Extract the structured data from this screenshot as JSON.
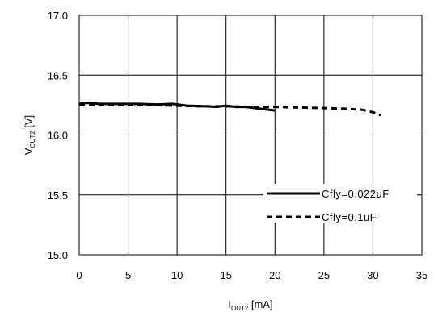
{
  "chart_data": {
    "type": "line",
    "xlabel": {
      "main": "I",
      "sub": "OUT2",
      "unit": " [mA]"
    },
    "ylabel": {
      "main": "V",
      "sub": "OUT2",
      "unit": " [V]"
    },
    "xlim": [
      0,
      35
    ],
    "ylim": [
      15.0,
      17.0
    ],
    "x_ticks": [
      0,
      5,
      10,
      15,
      20,
      25,
      30,
      35
    ],
    "y_ticks": [
      15.0,
      15.5,
      16.0,
      16.5,
      17.0
    ],
    "x_tick_labels": [
      "0",
      "5",
      "10",
      "15",
      "20",
      "25",
      "30",
      "35"
    ],
    "y_tick_labels": [
      "15.0",
      "15.5",
      "16.0",
      "16.5",
      "17.0"
    ],
    "grid": true,
    "legend_position": "bottom-right",
    "series": [
      {
        "name": "Cfly=0.022uF",
        "style": "solid",
        "color": "#000000",
        "x": [
          0,
          1,
          2,
          4,
          6,
          8,
          9.5,
          11,
          13,
          14,
          15,
          16,
          17,
          18,
          19,
          20
        ],
        "y": [
          16.26,
          16.27,
          16.26,
          16.26,
          16.26,
          16.255,
          16.26,
          16.245,
          16.24,
          16.235,
          16.245,
          16.235,
          16.235,
          16.225,
          16.215,
          16.205
        ]
      },
      {
        "name": "Cfly=0.1uF",
        "style": "dashed",
        "color": "#000000",
        "x": [
          0,
          2,
          5,
          8,
          10,
          12,
          15,
          18,
          20,
          22,
          25,
          27,
          29,
          30,
          30.8
        ],
        "y": [
          16.255,
          16.25,
          16.25,
          16.25,
          16.245,
          16.24,
          16.24,
          16.235,
          16.235,
          16.23,
          16.225,
          16.22,
          16.21,
          16.19,
          16.165
        ]
      }
    ]
  }
}
